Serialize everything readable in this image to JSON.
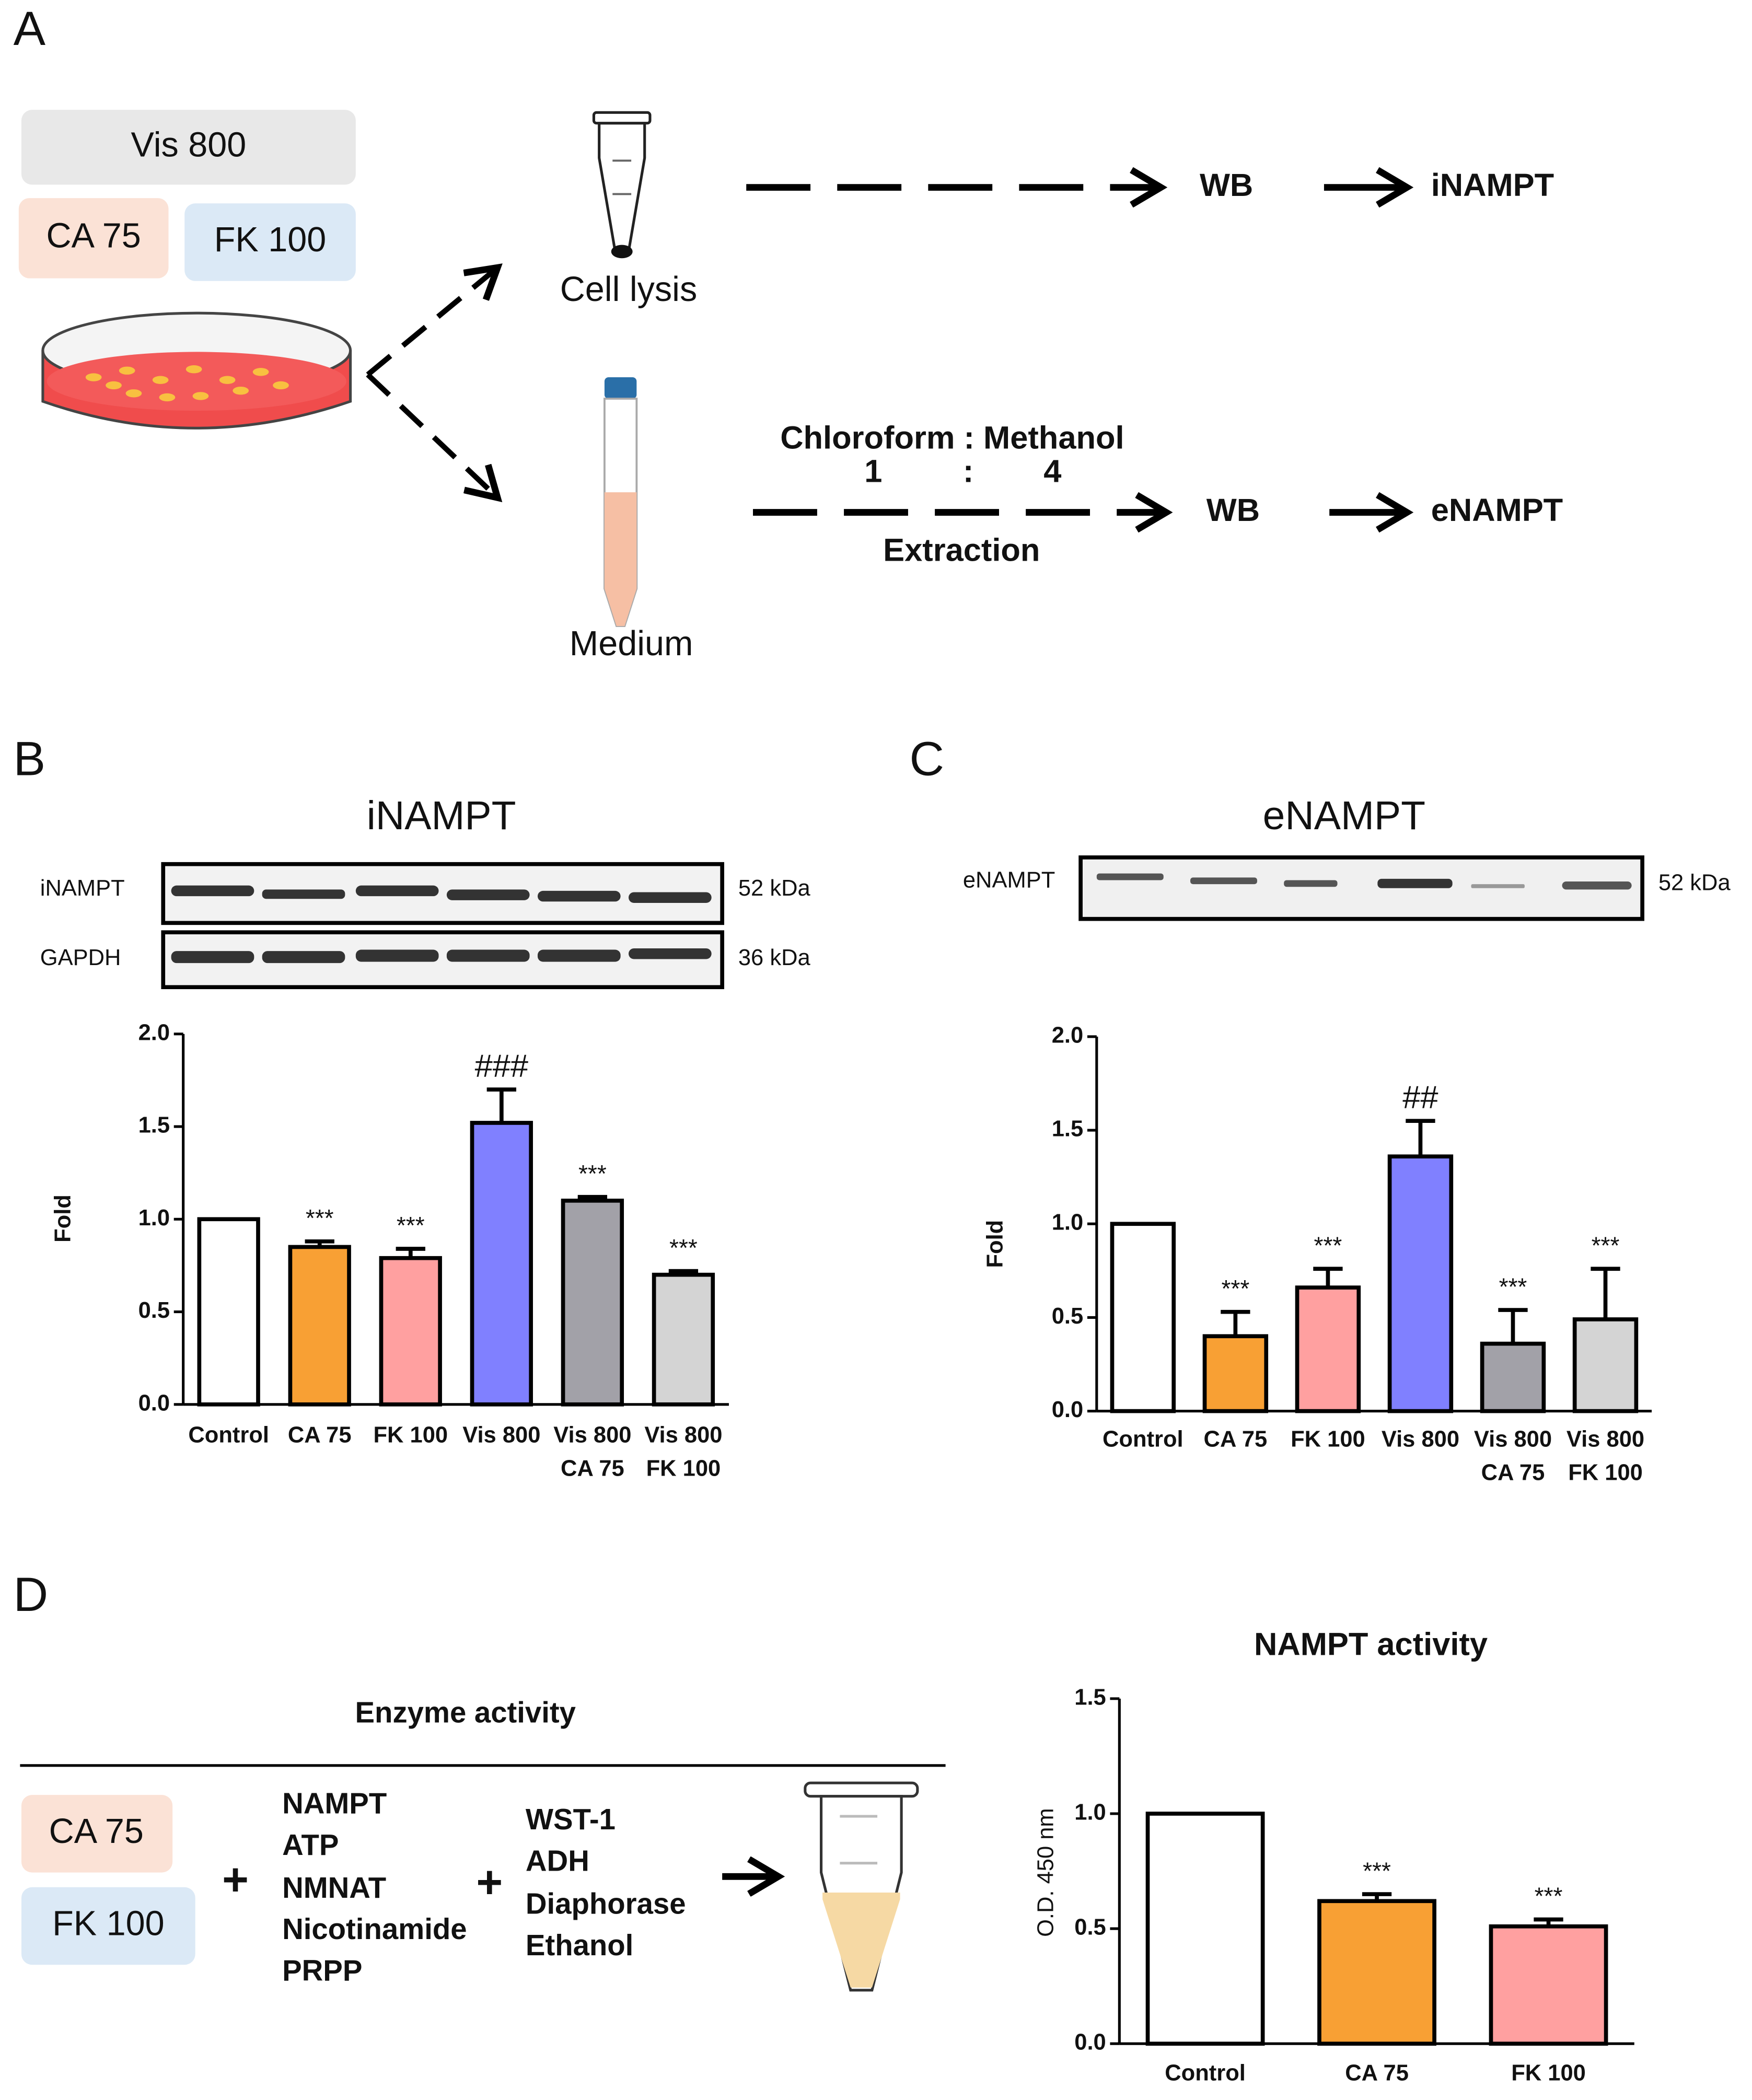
{
  "figure": {
    "panel_labels": [
      "A",
      "B",
      "C",
      "D"
    ],
    "panel_a": {
      "treatments": [
        "Vis 800",
        "CA 75",
        "FK 100"
      ],
      "cell_lysis": "Cell lysis",
      "medium": "Medium",
      "wb_1": "WB",
      "result_1": "iNAMPT",
      "solvent": "Chloroform : Methanol",
      "ratio": [
        "1",
        ":",
        "4"
      ],
      "extraction": "Extraction",
      "wb_2": "WB",
      "result_2": "eNAMPT"
    },
    "panel_b_blot": {
      "rows": [
        "iNAMPT",
        "GAPDH"
      ],
      "sizes": [
        "52 kDa",
        "36 kDa"
      ]
    },
    "panel_c_blot": {
      "rows": [
        "eNAMPT"
      ],
      "sizes": [
        "52 kDa"
      ]
    },
    "panel_d": {
      "title": "Enzyme activity",
      "treatments": [
        "CA 75",
        "FK 100"
      ],
      "plus": "+",
      "mix_1": [
        "NAMPT",
        "ATP",
        "NMNAT",
        "Nicotinamide",
        "PRPP"
      ],
      "mix_2": [
        "WST-1",
        "ADH",
        "Diaphorase",
        "Ethanol"
      ]
    }
  },
  "chart_data": [
    {
      "type": "bar",
      "title": "iNAMPT",
      "y_label": "Fold",
      "categories": [
        [
          "Control"
        ],
        [
          "CA 75"
        ],
        [
          "FK 100"
        ],
        [
          "Vis 800"
        ],
        [
          "Vis 800",
          "CA 75"
        ],
        [
          "Vis 800",
          "FK 100"
        ]
      ],
      "values": [
        1.0,
        0.85,
        0.79,
        1.52,
        1.1,
        0.7
      ],
      "errors": [
        0,
        0.03,
        0.05,
        0.18,
        0.02,
        0.02
      ],
      "annotations": [
        null,
        "***",
        "***",
        "###",
        "***",
        "***"
      ],
      "colors": [
        "#ffffff",
        "#f8a034",
        "#ffa0a0",
        "#8080ff",
        "#a2a1a8",
        "#d4d4d4"
      ],
      "ylim": [
        0,
        2.0
      ],
      "yticks": [
        {
          "value": 0,
          "label": "0.0"
        },
        {
          "value": 0.5,
          "label": "0.5"
        },
        {
          "value": 1.0,
          "label": "1.0"
        },
        {
          "value": 1.5,
          "label": "1.5"
        },
        {
          "value": 2.0,
          "label": "2.0"
        }
      ]
    },
    {
      "type": "bar",
      "title": "eNAMPT",
      "y_label": "Fold",
      "categories": [
        [
          "Control"
        ],
        [
          "CA 75"
        ],
        [
          "FK 100"
        ],
        [
          "Vis 800"
        ],
        [
          "Vis 800",
          "CA 75"
        ],
        [
          "Vis 800",
          "FK 100"
        ]
      ],
      "values": [
        1.0,
        0.4,
        0.66,
        1.36,
        0.36,
        0.49
      ],
      "errors": [
        0,
        0.13,
        0.1,
        0.19,
        0.18,
        0.27
      ],
      "annotations": [
        null,
        "***",
        "***",
        "##",
        "***",
        "***"
      ],
      "colors": [
        "#ffffff",
        "#f8a034",
        "#ffa0a0",
        "#8080ff",
        "#a2a1a8",
        "#d4d4d4"
      ],
      "ylim": [
        0,
        2.0
      ],
      "yticks": [
        {
          "value": 0,
          "label": "0.0"
        },
        {
          "value": 0.5,
          "label": "0.5"
        },
        {
          "value": 1.0,
          "label": "1.0"
        },
        {
          "value": 1.5,
          "label": "1.5"
        },
        {
          "value": 2.0,
          "label": "2.0"
        }
      ]
    },
    {
      "type": "bar",
      "title": "NAMPT activity",
      "y_label": "O.D. 450 nm",
      "categories": [
        [
          "Control"
        ],
        [
          "CA 75"
        ],
        [
          "FK 100"
        ]
      ],
      "values": [
        1.0,
        0.62,
        0.51
      ],
      "errors": [
        0,
        0.03,
        0.03
      ],
      "annotations": [
        null,
        "***",
        "***"
      ],
      "colors": [
        "#ffffff",
        "#f8a034",
        "#ffa0a0"
      ],
      "ylim": [
        0,
        1.5
      ],
      "yticks": [
        {
          "value": 0,
          "label": "0.0"
        },
        {
          "value": 0.5,
          "label": "0.5"
        },
        {
          "value": 1.0,
          "label": "1.0"
        },
        {
          "value": 1.5,
          "label": "1.5"
        }
      ]
    }
  ]
}
